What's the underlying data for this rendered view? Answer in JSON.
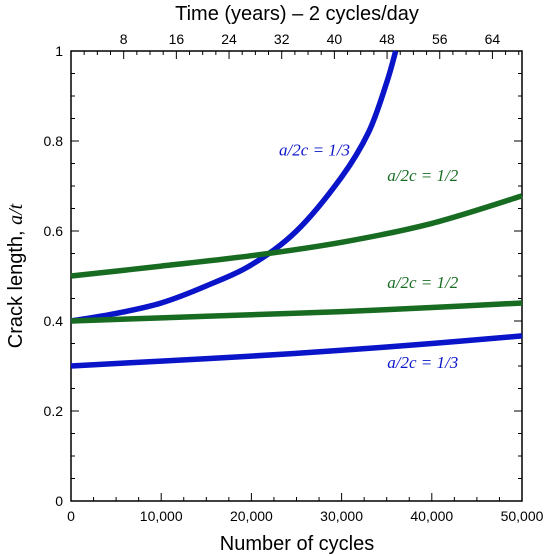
{
  "chart_data": {
    "type": "line",
    "top_axis_title": "Time (years) – 2 cycles/day",
    "xlabel": "Number of cycles",
    "ylabel_prefix": "Crack length, ",
    "ylabel_var": "a/t",
    "xlim": [
      0,
      50000
    ],
    "ylim": [
      0,
      1
    ],
    "x_ticks": [
      0,
      10000,
      20000,
      30000,
      40000,
      50000
    ],
    "x_tick_labels": [
      "0",
      "10,000",
      "20,000",
      "30,000",
      "40,000",
      "50,000"
    ],
    "y_ticks": [
      0,
      0.2,
      0.4,
      0.6,
      0.8,
      1
    ],
    "y_tick_labels": [
      "0",
      "0.2",
      "0.4",
      "0.6",
      "0.8",
      "1"
    ],
    "top_ticks_years": [
      8,
      16,
      24,
      32,
      40,
      48,
      56,
      64
    ],
    "top_tick_labels": [
      "8",
      "16",
      "24",
      "32",
      "40",
      "48",
      "56",
      "64"
    ],
    "grid": false,
    "series": [
      {
        "label": "a/2c = 1/3",
        "color": "#0a14c8",
        "x": [
          0,
          5000,
          10000,
          15000,
          20000,
          25000,
          30000,
          33000,
          35000,
          36000
        ],
        "y": [
          0.4,
          0.417,
          0.44,
          0.478,
          0.525,
          0.6,
          0.72,
          0.82,
          0.93,
          1.0
        ]
      },
      {
        "label": "a/2c = 1/2",
        "color": "#176c22",
        "x": [
          0,
          10000,
          20000,
          30000,
          40000,
          50000
        ],
        "y": [
          0.5,
          0.522,
          0.545,
          0.575,
          0.617,
          0.678
        ]
      },
      {
        "label": "a/2c = 1/2",
        "color": "#176c22",
        "x": [
          0,
          10000,
          20000,
          30000,
          40000,
          50000
        ],
        "y": [
          0.4,
          0.407,
          0.414,
          0.421,
          0.43,
          0.44
        ]
      },
      {
        "label": "a/2c = 1/3",
        "color": "#0a14c8",
        "x": [
          0,
          10000,
          20000,
          30000,
          40000,
          50000
        ],
        "y": [
          0.3,
          0.311,
          0.322,
          0.335,
          0.35,
          0.367
        ]
      }
    ]
  }
}
